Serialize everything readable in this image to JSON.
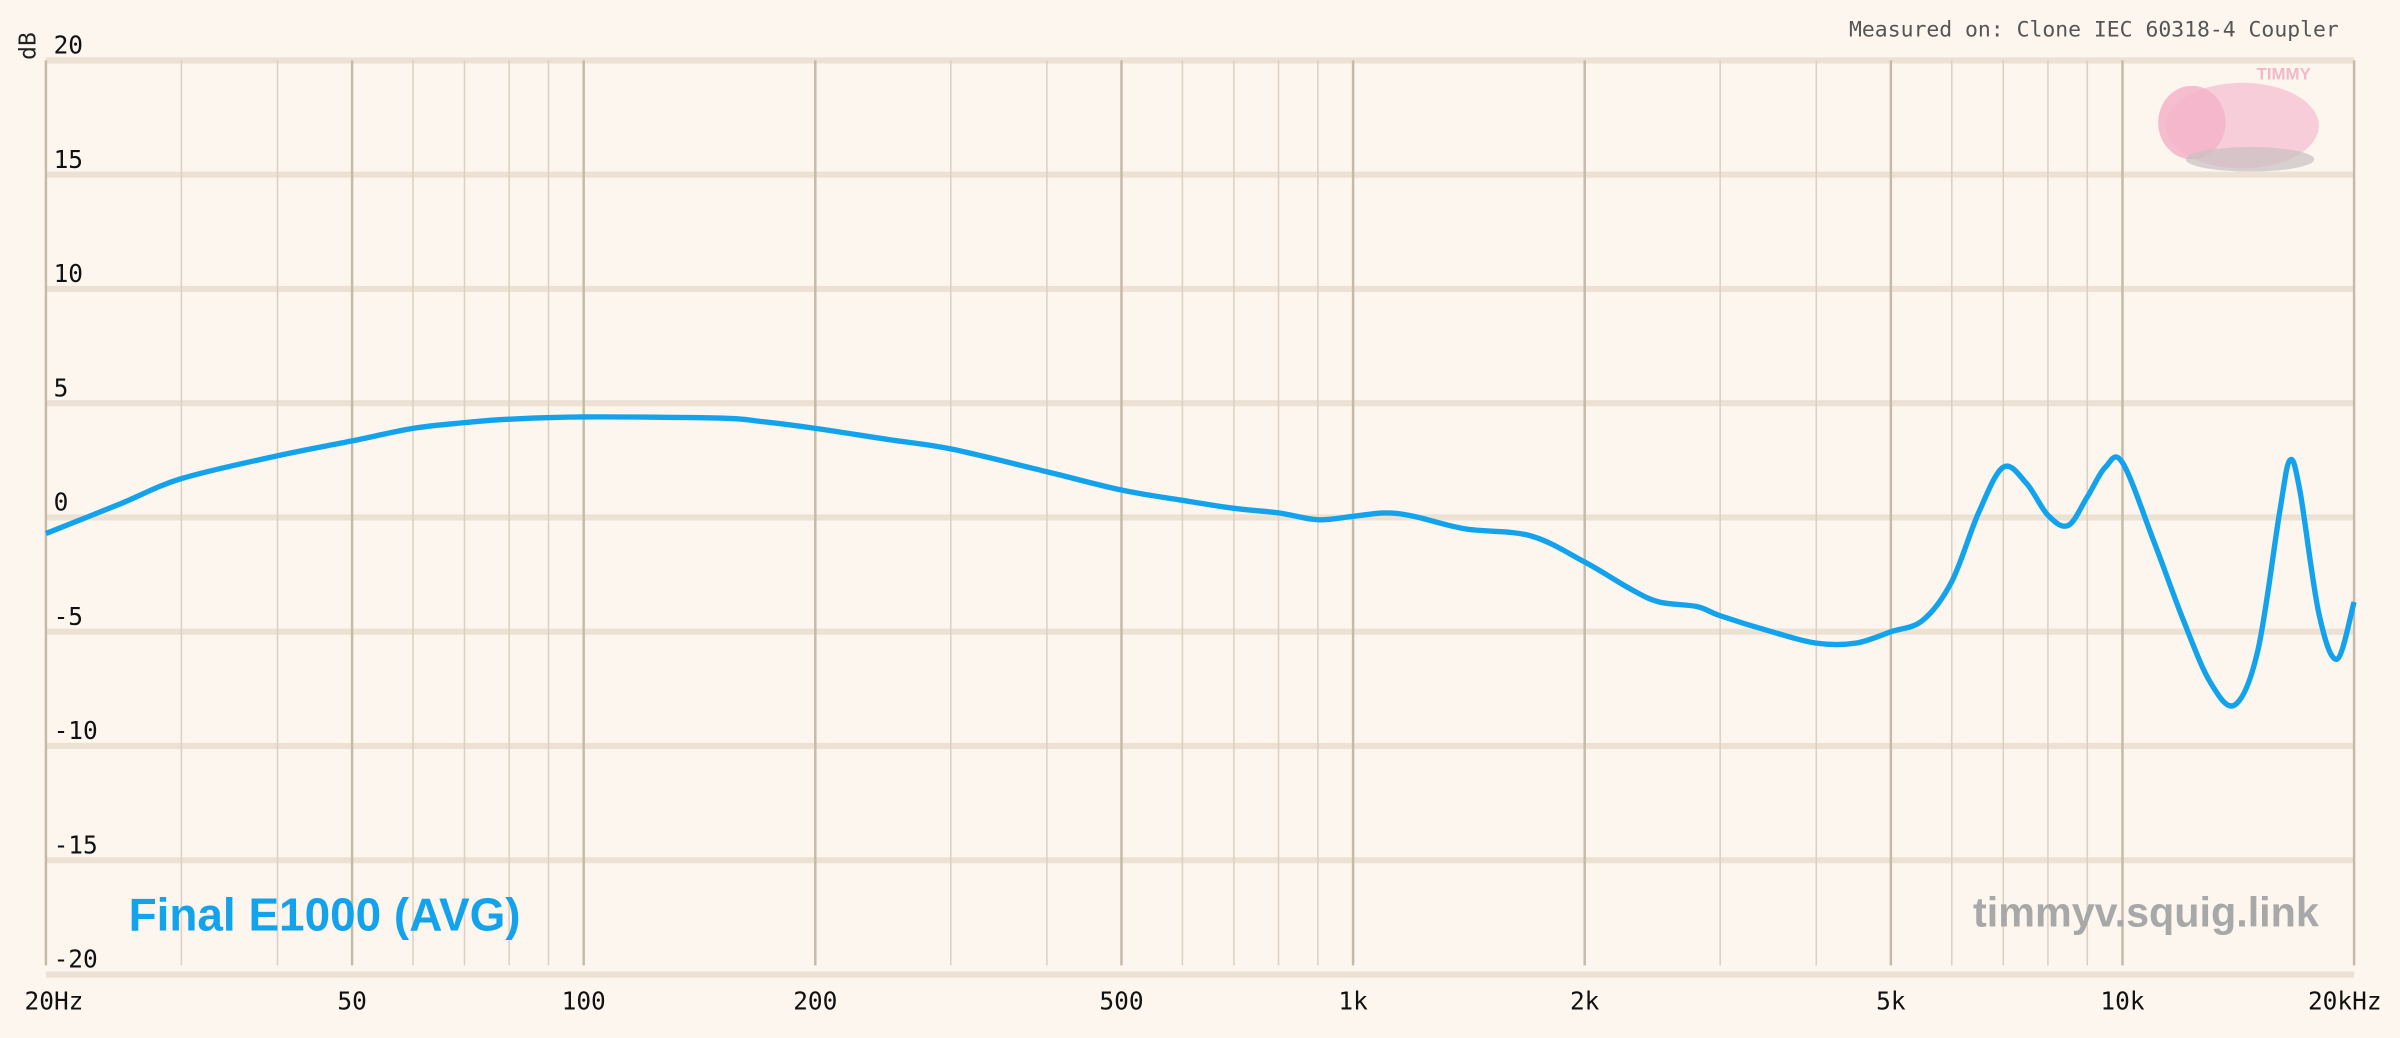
{
  "chart_data": {
    "type": "line",
    "measured_on": "Measured on: Clone IEC 60318-4 Coupler",
    "watermark": "timmyv.squig.link",
    "logo_text": "TIMMY",
    "ylabel": "dB",
    "xscale": "log",
    "grid": true,
    "xlim": [
      20,
      20000
    ],
    "ylim": [
      -20,
      20
    ],
    "xticks": [
      {
        "value": 20,
        "label": "20Hz"
      },
      50,
      100,
      200,
      500,
      {
        "value": 1000,
        "label": "1k"
      },
      {
        "value": 2000,
        "label": "2k"
      },
      {
        "value": 5000,
        "label": "5k"
      },
      {
        "value": 10000,
        "label": "10k"
      },
      {
        "value": 20000,
        "label": "20kHz"
      }
    ],
    "xminor": [
      30,
      40,
      60,
      70,
      80,
      90,
      300,
      400,
      600,
      700,
      800,
      900,
      3000,
      4000,
      6000,
      7000,
      8000,
      9000
    ],
    "yticks": [
      20,
      15,
      10,
      5,
      0,
      -5,
      -10,
      -15,
      -20
    ],
    "x": [
      20,
      25,
      30,
      40,
      50,
      60,
      70,
      80,
      100,
      150,
      170,
      200,
      250,
      300,
      400,
      500,
      600,
      700,
      800,
      900,
      1000,
      1100,
      1200,
      1400,
      1700,
      2000,
      2300,
      2500,
      2800,
      3000,
      3500,
      4000,
      4500,
      5000,
      5500,
      6000,
      6500,
      7000,
      7500,
      8000,
      8500,
      9000,
      9500,
      10000,
      11000,
      12000,
      13000,
      14000,
      15000,
      16000,
      16500,
      17000,
      18000,
      19000,
      20000
    ],
    "series": [
      {
        "name": "Final E1000 (AVG)",
        "color": "#12a3ec",
        "values": [
          -0.7,
          0.6,
          1.7,
          2.7,
          3.35,
          3.9,
          4.15,
          4.3,
          4.4,
          4.35,
          4.2,
          3.9,
          3.4,
          3.0,
          2.0,
          1.2,
          0.75,
          0.4,
          0.2,
          -0.1,
          0.05,
          0.2,
          0.05,
          -0.5,
          -0.8,
          -1.95,
          -3.15,
          -3.7,
          -3.9,
          -4.3,
          -5.0,
          -5.5,
          -5.5,
          -5.0,
          -4.5,
          -2.8,
          0.2,
          2.2,
          1.5,
          0.1,
          -0.35,
          0.9,
          2.2,
          2.4,
          -1.1,
          -4.5,
          -7.2,
          -8.2,
          -5.8,
          0.2,
          2.5,
          1.2,
          -4.2,
          -6.2,
          -3.7
        ]
      }
    ]
  }
}
